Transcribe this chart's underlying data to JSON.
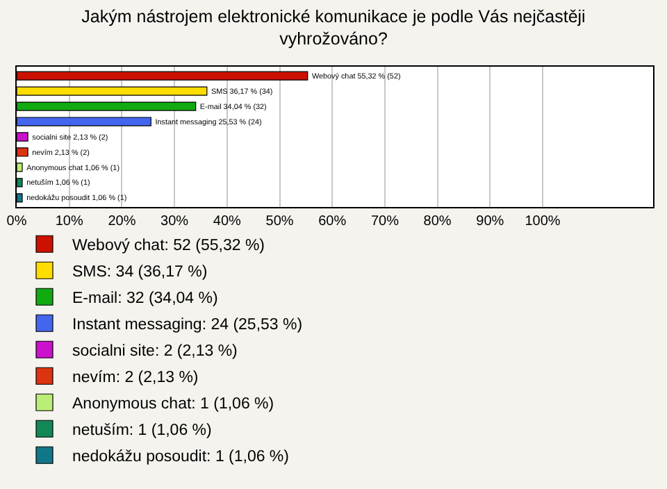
{
  "chart_data": {
    "type": "bar",
    "orientation": "horizontal",
    "title": "Jakým nástrojem elektronické komunikace je podle Vás nejčastěji vyhrožováno?",
    "categories": [
      null,
      null,
      null,
      null,
      null,
      null,
      null,
      null,
      null
    ],
    "series": [
      {
        "name": "Webový chat: 52 (55,32 %)",
        "color": "#cc1100",
        "values": [
          55.32,
          null,
          null,
          null,
          null,
          null,
          null,
          null,
          null
        ],
        "value_labels": [
          "Webový chat 55,32 % (52)",
          null,
          null,
          null,
          null,
          null,
          null,
          null,
          null
        ]
      },
      {
        "name": "SMS: 34 (36,17 %)",
        "color": "#ffdd00",
        "values": [
          null,
          36.17,
          null,
          null,
          null,
          null,
          null,
          null,
          null
        ],
        "value_labels": [
          null,
          "SMS 36,17 % (34)",
          null,
          null,
          null,
          null,
          null,
          null,
          null
        ]
      },
      {
        "name": "E-mail: 32 (34,04 %)",
        "color": "#11aa11",
        "values": [
          null,
          null,
          34.04,
          null,
          null,
          null,
          null,
          null,
          null
        ],
        "value_labels": [
          null,
          null,
          "E-mail 34,04 % (32)",
          null,
          null,
          null,
          null,
          null,
          null
        ]
      },
      {
        "name": "Instant messaging: 24 (25,53 %)",
        "color": "#4466ee",
        "values": [
          null,
          null,
          null,
          25.53,
          null,
          null,
          null,
          null,
          null
        ],
        "value_labels": [
          null,
          null,
          null,
          "Instant messaging 25,53 % (24)",
          null,
          null,
          null,
          null,
          null
        ]
      },
      {
        "name": "socialni site: 2 (2,13 %)",
        "color": "#cc11cc",
        "values": [
          null,
          null,
          null,
          null,
          2.13,
          null,
          null,
          null,
          null
        ],
        "value_labels": [
          null,
          null,
          null,
          null,
          "socialni site 2,13 % (2)",
          null,
          null,
          null,
          null
        ]
      },
      {
        "name": "nevím: 2 (2,13 %)",
        "color": "#dd3311",
        "values": [
          null,
          null,
          null,
          null,
          null,
          2.13,
          null,
          null,
          null
        ],
        "value_labels": [
          null,
          null,
          null,
          null,
          null,
          "nevím 2,13 % (2)",
          null,
          null,
          null
        ]
      },
      {
        "name": "Anonymous chat: 1 (1,06 %)",
        "color": "#bbee77",
        "values": [
          null,
          null,
          null,
          null,
          null,
          null,
          1.06,
          null,
          null
        ],
        "value_labels": [
          null,
          null,
          null,
          null,
          null,
          null,
          "Anonymous chat 1,06 % (1)",
          null,
          null
        ]
      },
      {
        "name": "netuším: 1 (1,06 %)",
        "color": "#118855",
        "values": [
          null,
          null,
          null,
          null,
          null,
          null,
          null,
          1.06,
          null
        ],
        "value_labels": [
          null,
          null,
          null,
          null,
          null,
          null,
          null,
          "netuším 1,06 % (1)",
          null
        ]
      },
      {
        "name": "nedokážu posoudit: 1 (1,06 %)",
        "color": "#117788",
        "values": [
          null,
          null,
          null,
          null,
          null,
          null,
          null,
          null,
          1.06
        ],
        "value_labels": [
          null,
          null,
          null,
          null,
          null,
          null,
          null,
          null,
          "nedokážu posoudit 1,06 % (1)"
        ]
      }
    ],
    "xlim": [
      0,
      121
    ],
    "xticks": [
      {
        "value": 0,
        "label": "0%"
      },
      {
        "value": 10,
        "label": "10%"
      },
      {
        "value": 20,
        "label": "20%"
      },
      {
        "value": 30,
        "label": "30%"
      },
      {
        "value": 40,
        "label": "40%"
      },
      {
        "value": 50,
        "label": "50%"
      },
      {
        "value": 60,
        "label": "60%"
      },
      {
        "value": 70,
        "label": "70%"
      },
      {
        "value": 80,
        "label": "80%"
      },
      {
        "value": 90,
        "label": "90%"
      },
      {
        "value": 100,
        "label": "100%"
      }
    ],
    "grid": "x",
    "legend": "bottom",
    "tick_labels": "x"
  }
}
